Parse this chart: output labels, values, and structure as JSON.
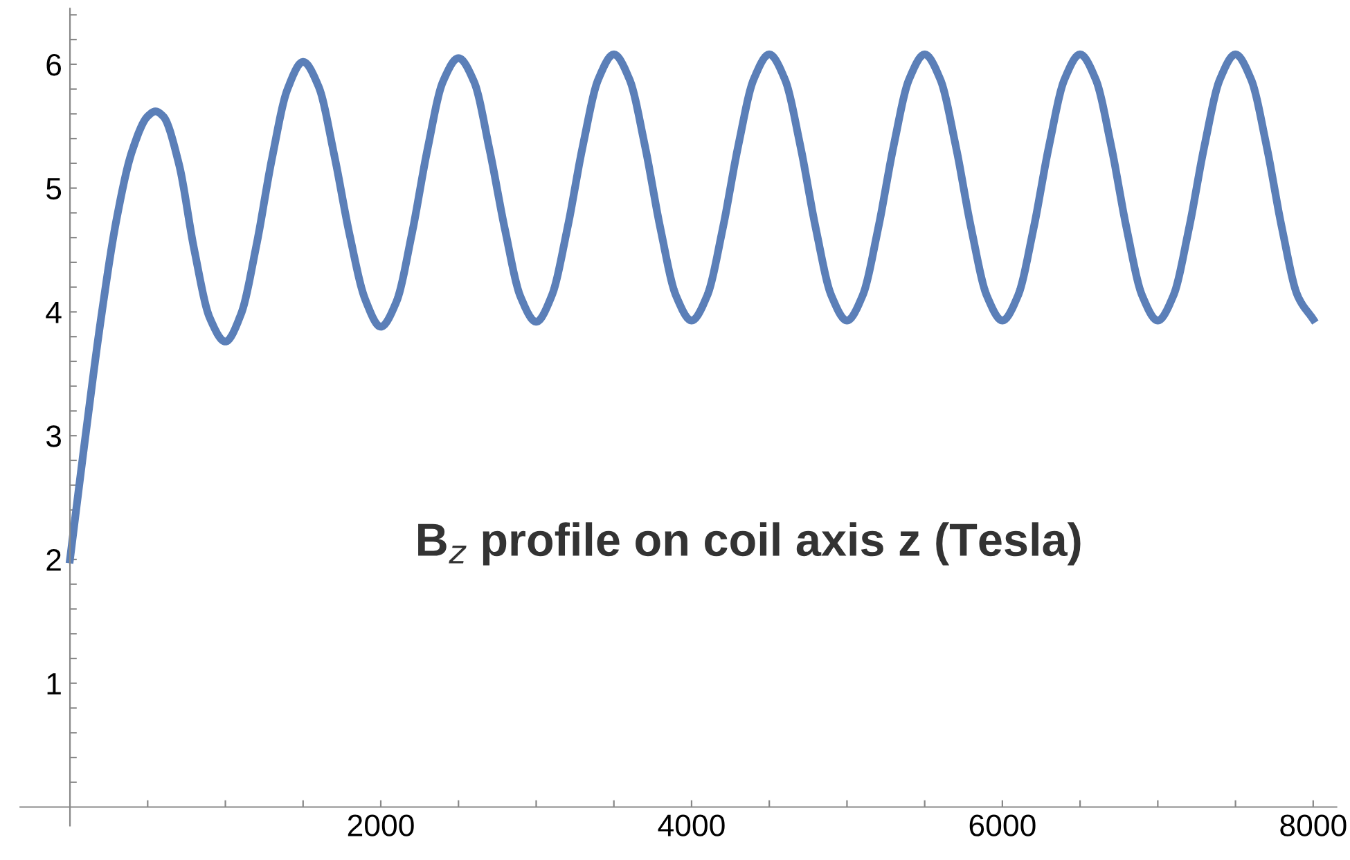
{
  "chart_data": {
    "type": "line",
    "annotations": [
      "B$_{z}$ profile on coil axis z (Tesla)"
    ],
    "x": [
      0,
      100,
      200,
      300,
      400,
      500,
      550,
      600,
      700,
      800,
      900,
      1000,
      1100,
      1200,
      1300,
      1400,
      1500,
      1600,
      1700,
      1800,
      1900,
      2000,
      2100,
      2200,
      2300,
      2400,
      2500,
      2600,
      2700,
      2800,
      2900,
      3000,
      3100,
      3200,
      3300,
      3400,
      3500,
      3600,
      3700,
      3800,
      3900,
      4000,
      4100,
      4200,
      4300,
      4400,
      4500,
      4600,
      4700,
      4800,
      4900,
      5000,
      5100,
      5200,
      5300,
      5400,
      5500,
      5600,
      5700,
      5800,
      5900,
      6000,
      6100,
      6200,
      6300,
      6400,
      6500,
      6600,
      6700,
      6800,
      6900,
      7000,
      7100,
      7200,
      7300,
      7400,
      7500,
      7600,
      7700,
      7800,
      7900,
      8000
    ],
    "series": [
      {
        "color": "#5b7fb8",
        "values": [
          2.0,
          3.0,
          3.95,
          4.75,
          5.3,
          5.58,
          5.62,
          5.58,
          5.2,
          4.5,
          3.95,
          3.76,
          3.98,
          4.54,
          5.24,
          5.8,
          6.02,
          5.82,
          5.27,
          4.62,
          4.1,
          3.88,
          4.08,
          4.63,
          5.31,
          5.86,
          6.05,
          5.86,
          5.31,
          4.66,
          4.12,
          3.92,
          4.13,
          4.67,
          5.34,
          5.88,
          6.08,
          5.88,
          5.34,
          4.67,
          4.13,
          3.93,
          4.13,
          4.67,
          5.34,
          5.88,
          6.08,
          5.88,
          5.34,
          4.67,
          4.13,
          3.93,
          4.13,
          4.67,
          5.34,
          5.88,
          6.08,
          5.88,
          5.34,
          4.67,
          4.13,
          3.93,
          4.13,
          4.67,
          5.34,
          5.88,
          6.08,
          5.88,
          5.34,
          4.67,
          4.13,
          3.93,
          4.13,
          4.67,
          5.34,
          5.88,
          6.08,
          5.88,
          5.34,
          4.67,
          4.13,
          3.94
        ]
      }
    ],
    "xlim": [
      -320,
      8150
    ],
    "ylim": [
      -0.15,
      6.45
    ],
    "xticks": [
      {
        "value": 500,
        "label": null
      },
      {
        "value": 1000,
        "label": null
      },
      {
        "value": 1500,
        "label": null
      },
      2000,
      {
        "value": 2500,
        "label": null
      },
      {
        "value": 3000,
        "label": null
      },
      {
        "value": 3500,
        "label": null
      },
      4000,
      {
        "value": 4500,
        "label": null
      },
      {
        "value": 5000,
        "label": null
      },
      {
        "value": 5500,
        "label": null
      },
      6000,
      {
        "value": 6500,
        "label": null
      },
      {
        "value": 7000,
        "label": null
      },
      {
        "value": 7500,
        "label": null
      },
      8000
    ],
    "yticks": [
      {
        "value": 0.2,
        "label": null
      },
      {
        "value": 0.4,
        "label": null
      },
      {
        "value": 0.6,
        "label": null
      },
      {
        "value": 0.8,
        "label": null
      },
      1,
      {
        "value": 1.2,
        "label": null
      },
      {
        "value": 1.4,
        "label": null
      },
      {
        "value": 1.6,
        "label": null
      },
      {
        "value": 1.8,
        "label": null
      },
      2,
      {
        "value": 2.2,
        "label": null
      },
      {
        "value": 2.4,
        "label": null
      },
      {
        "value": 2.6,
        "label": null
      },
      {
        "value": 2.8,
        "label": null
      },
      3,
      {
        "value": 3.2,
        "label": null
      },
      {
        "value": 3.4,
        "label": null
      },
      {
        "value": 3.6,
        "label": null
      },
      {
        "value": 3.8,
        "label": null
      },
      4,
      {
        "value": 4.2,
        "label": null
      },
      {
        "value": 4.4,
        "label": null
      },
      {
        "value": 4.6,
        "label": null
      },
      {
        "value": 4.8,
        "label": null
      },
      5,
      {
        "value": 5.2,
        "label": null
      },
      {
        "value": 5.4,
        "label": null
      },
      {
        "value": 5.6,
        "label": null
      },
      {
        "value": 5.8,
        "label": null
      },
      6,
      {
        "value": 6.2,
        "label": null
      },
      {
        "value": 6.4,
        "label": null
      }
    ],
    "grid": false,
    "marker": "none",
    "line_style": "solid"
  }
}
